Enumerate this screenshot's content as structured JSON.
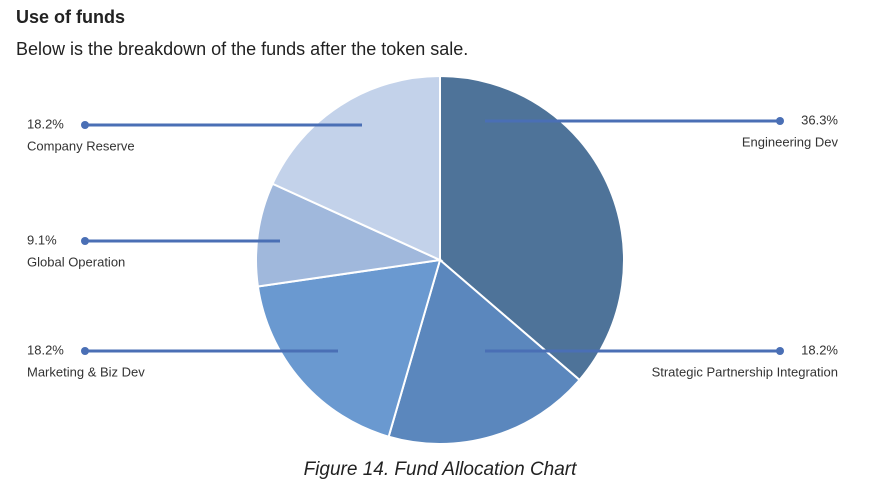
{
  "chart_data": {
    "type": "pie",
    "title": "Use of funds",
    "subtitle": "Below is the breakdown of the funds after the token sale.",
    "caption": "Figure 14. Fund Allocation Chart",
    "categories": [
      "Engineering Dev",
      "Strategic Partnership Integration",
      "Marketing & Biz Dev",
      "Global Operation",
      "Company Reserve"
    ],
    "values": [
      36.3,
      18.2,
      18.2,
      9.1,
      18.2
    ],
    "value_labels": [
      "36.3%",
      "18.2%",
      "18.2%",
      "9.1%",
      "18.2%"
    ],
    "colors": [
      "#4e7399",
      "#5b87bd",
      "#6a99d0",
      "#a0b8dc",
      "#c3d2ea"
    ],
    "leader_color": "#4a6fb5"
  }
}
